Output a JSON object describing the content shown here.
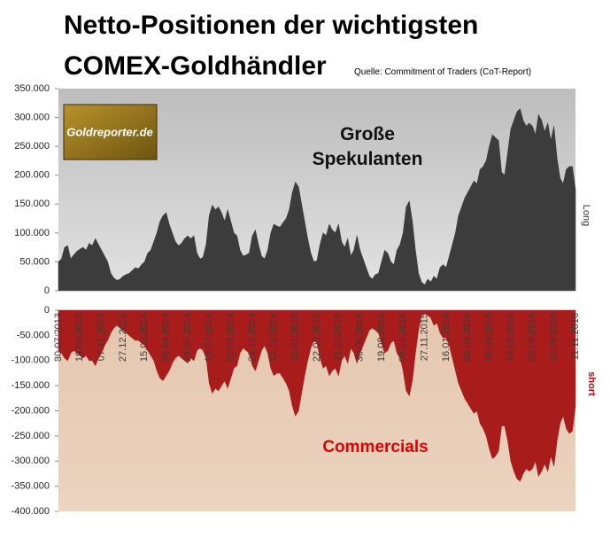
{
  "chart_data": [
    {
      "type": "area",
      "title": "Netto-Positionen der wichtigsten COMEX-Goldhändler",
      "subtitle": "Quelle: Commitment of Traders (CoT-Report)",
      "watermark": "Goldreporter.de",
      "series": [
        {
          "name": "Große Spekulanten",
          "side_label": "Long",
          "color": "#3c3c3c",
          "values": [
            50000,
            55000,
            75000,
            78000,
            55000,
            62000,
            68000,
            72000,
            75000,
            70000,
            82000,
            78000,
            90000,
            80000,
            70000,
            60000,
            50000,
            30000,
            22000,
            18000,
            20000,
            25000,
            28000,
            30000,
            35000,
            40000,
            38000,
            45000,
            50000,
            65000,
            70000,
            85000,
            100000,
            120000,
            130000,
            135000,
            115000,
            100000,
            85000,
            78000,
            82000,
            90000,
            95000,
            90000,
            95000,
            65000,
            55000,
            58000,
            80000,
            130000,
            148000,
            140000,
            145000,
            135000,
            120000,
            140000,
            120000,
            100000,
            95000,
            70000,
            60000,
            62000,
            65000,
            95000,
            105000,
            80000,
            60000,
            55000,
            70000,
            100000,
            115000,
            112000,
            110000,
            118000,
            125000,
            140000,
            170000,
            188000,
            180000,
            150000,
            120000,
            90000,
            65000,
            50000,
            52000,
            80000,
            100000,
            95000,
            115000,
            105000,
            100000,
            115000,
            85000,
            75000,
            90000,
            60000,
            70000,
            95000,
            70000,
            55000,
            40000,
            25000,
            20000,
            28000,
            30000,
            50000,
            70000,
            65000,
            50000,
            45000,
            70000,
            80000,
            100000,
            145000,
            155000,
            120000,
            70000,
            30000,
            15000,
            10000,
            20000,
            15000,
            25000,
            20000,
            40000,
            45000,
            40000,
            60000,
            80000,
            100000,
            130000,
            145000,
            160000,
            170000,
            180000,
            190000,
            185000,
            210000,
            215000,
            225000,
            250000,
            270000,
            265000,
            260000,
            205000,
            200000,
            240000,
            280000,
            295000,
            310000,
            315000,
            295000,
            285000,
            290000,
            285000,
            270000,
            305000,
            295000,
            275000,
            290000,
            260000,
            285000,
            230000,
            195000,
            185000,
            210000,
            215000,
            215000,
            175000
          ]
        }
      ],
      "ylim": [
        0,
        350000
      ],
      "yticks": [
        0,
        {
          "value": 50000,
          "label": "50.000"
        },
        {
          "value": 100000,
          "label": "100.000"
        },
        {
          "value": 150000,
          "label": "150.000"
        },
        {
          "value": 200000,
          "label": "200.000"
        },
        {
          "value": 250000,
          "label": "250.000"
        },
        {
          "value": 300000,
          "label": "300.000"
        },
        {
          "value": 350000,
          "label": "350.000"
        }
      ]
    },
    {
      "type": "area",
      "categories": [
        "30.07.2013",
        null,
        null,
        null,
        null,
        null,
        null,
        "18.09.2013",
        null,
        null,
        null,
        null,
        null,
        null,
        "07.11.2013",
        null,
        null,
        null,
        null,
        null,
        null,
        "27.12.2013",
        null,
        null,
        null,
        null,
        null,
        null,
        "15.02.2014",
        null,
        null,
        null,
        null,
        null,
        null,
        "06.04.2014",
        null,
        null,
        null,
        null,
        null,
        null,
        "26.05.2014",
        null,
        null,
        null,
        null,
        null,
        null,
        "15.07.2014",
        null,
        null,
        null,
        null,
        null,
        null,
        "03.09.2014",
        null,
        null,
        null,
        null,
        null,
        null,
        "23.10.2014",
        null,
        null,
        null,
        null,
        null,
        null,
        "12.12.2014",
        null,
        null,
        null,
        null,
        null,
        null,
        "31.01.2015",
        null,
        null,
        null,
        null,
        null,
        null,
        "22.03.2015",
        null,
        null,
        null,
        null,
        null,
        null,
        "11.05.2015",
        null,
        null,
        null,
        null,
        null,
        null,
        "30.06.2015",
        null,
        null,
        null,
        null,
        null,
        null,
        "19.08.2015",
        null,
        null,
        null,
        null,
        null,
        null,
        "08.10.2015",
        null,
        null,
        null,
        null,
        null,
        null,
        "27.11.2015",
        null,
        null,
        null,
        null,
        null,
        null,
        "16.01.2016",
        null,
        null,
        null,
        null,
        null,
        null,
        "06.03.2016",
        null,
        null,
        null,
        null,
        null,
        null,
        "25.04.2016",
        null,
        null,
        null,
        null,
        null,
        null,
        "14.06.2016",
        null,
        null,
        null,
        null,
        null,
        null,
        "03.08.2016",
        null,
        null,
        null,
        null,
        null,
        null,
        "22.09.2016",
        null,
        null,
        null,
        null,
        null,
        null,
        "11.11.2016"
      ],
      "series": [
        {
          "name": "Commercials",
          "side_label": "short",
          "color": "#a81c1c",
          "values": [
            -80000,
            -85000,
            -95000,
            -100000,
            -85000,
            -80000,
            -85000,
            -90000,
            -95000,
            -90000,
            -100000,
            -100000,
            -110000,
            -95000,
            -85000,
            -70000,
            -60000,
            -45000,
            -35000,
            -30000,
            -35000,
            -40000,
            -45000,
            -50000,
            -55000,
            -60000,
            -60000,
            -65000,
            -70000,
            -80000,
            -90000,
            -100000,
            -120000,
            -135000,
            -140000,
            -130000,
            -120000,
            -105000,
            -95000,
            -90000,
            -95000,
            -100000,
            -105000,
            -95000,
            -100000,
            -80000,
            -75000,
            -80000,
            -95000,
            -145000,
            -165000,
            -155000,
            -160000,
            -150000,
            -140000,
            -155000,
            -135000,
            -115000,
            -110000,
            -85000,
            -75000,
            -80000,
            -85000,
            -110000,
            -120000,
            -100000,
            -80000,
            -70000,
            -85000,
            -115000,
            -130000,
            -125000,
            -125000,
            -135000,
            -145000,
            -160000,
            -190000,
            -210000,
            -200000,
            -165000,
            -130000,
            -100000,
            -75000,
            -60000,
            -65000,
            -95000,
            -115000,
            -110000,
            -130000,
            -120000,
            -115000,
            -130000,
            -100000,
            -90000,
            -105000,
            -75000,
            -85000,
            -105000,
            -85000,
            -70000,
            -55000,
            -40000,
            -35000,
            -40000,
            -45000,
            -65000,
            -85000,
            -80000,
            -65000,
            -60000,
            -85000,
            -95000,
            -120000,
            -160000,
            -170000,
            -140000,
            -85000,
            -40000,
            -10000,
            -5000,
            -10000,
            -15000,
            -30000,
            -25000,
            -45000,
            -55000,
            -55000,
            -70000,
            -95000,
            -120000,
            -145000,
            -160000,
            -175000,
            -185000,
            -195000,
            -205000,
            -200000,
            -225000,
            -235000,
            -250000,
            -275000,
            -295000,
            -290000,
            -280000,
            -230000,
            -230000,
            -260000,
            -300000,
            -320000,
            -335000,
            -340000,
            -325000,
            -315000,
            -320000,
            -315000,
            -300000,
            -330000,
            -320000,
            -305000,
            -320000,
            -290000,
            -310000,
            -260000,
            -225000,
            -210000,
            -235000,
            -245000,
            -240000,
            -190000
          ]
        }
      ],
      "ylim": [
        -400000,
        0
      ],
      "yticks": [
        0,
        {
          "value": -50000,
          "label": "-50.000"
        },
        {
          "value": -100000,
          "label": "-100.000"
        },
        {
          "value": -150000,
          "label": "-150.000"
        },
        {
          "value": -200000,
          "label": "-200.000"
        },
        {
          "value": -250000,
          "label": "-250.000"
        },
        {
          "value": -300000,
          "label": "-300.000"
        },
        {
          "value": -350000,
          "label": "-350.000"
        },
        {
          "value": -400000,
          "label": "-400.000"
        }
      ]
    }
  ]
}
